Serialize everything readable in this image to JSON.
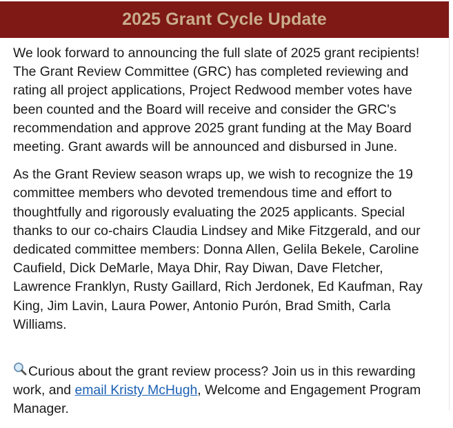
{
  "header": {
    "title": "2025 Grant Cycle Update"
  },
  "paragraphs": [
    "We look forward to announcing the full slate of 2025 grant recipients! The Grant Review Committee (GRC) has completed reviewing and rating all project applications, Project Redwood member votes have been counted and the Board will receive and consider the GRC's recommendation and approve 2025 grant funding at the May Board meeting. Grant awards will be announced and disbursed in June.",
    "As the Grant Review season wraps up, we wish to recognize the 19 committee members who devoted tremendous time and effort to thoughtfully and rigorously evaluating the 2025 applicants. Special thanks to our co-chairs Claudia Lindsey and Mike Fitzgerald, and our dedicated committee members: Donna Allen, Gelila Bekele, Caroline Caufield, Dick DeMarle, Maya Dhir, Ray Diwan, Dave Fletcher, Lawrence Franklyn, Rusty Gaillard, Rich Jerdonek, Ed Kaufman, Ray King, Jim Lavin, Laura Power, Antonio Purón, Brad Smith, Carla Williams."
  ],
  "cta": {
    "icon": "magnifying-glass-icon",
    "text_before": "Curious about the grant review process? Join us in this rewarding work, and ",
    "link_text": "email Kristy McHugh",
    "text_after": ", Welcome and Engagement Program Manager."
  },
  "colors": {
    "header_bg": "#7e1916",
    "header_text": "#c9ad8b",
    "link": "#1a5fb4"
  }
}
